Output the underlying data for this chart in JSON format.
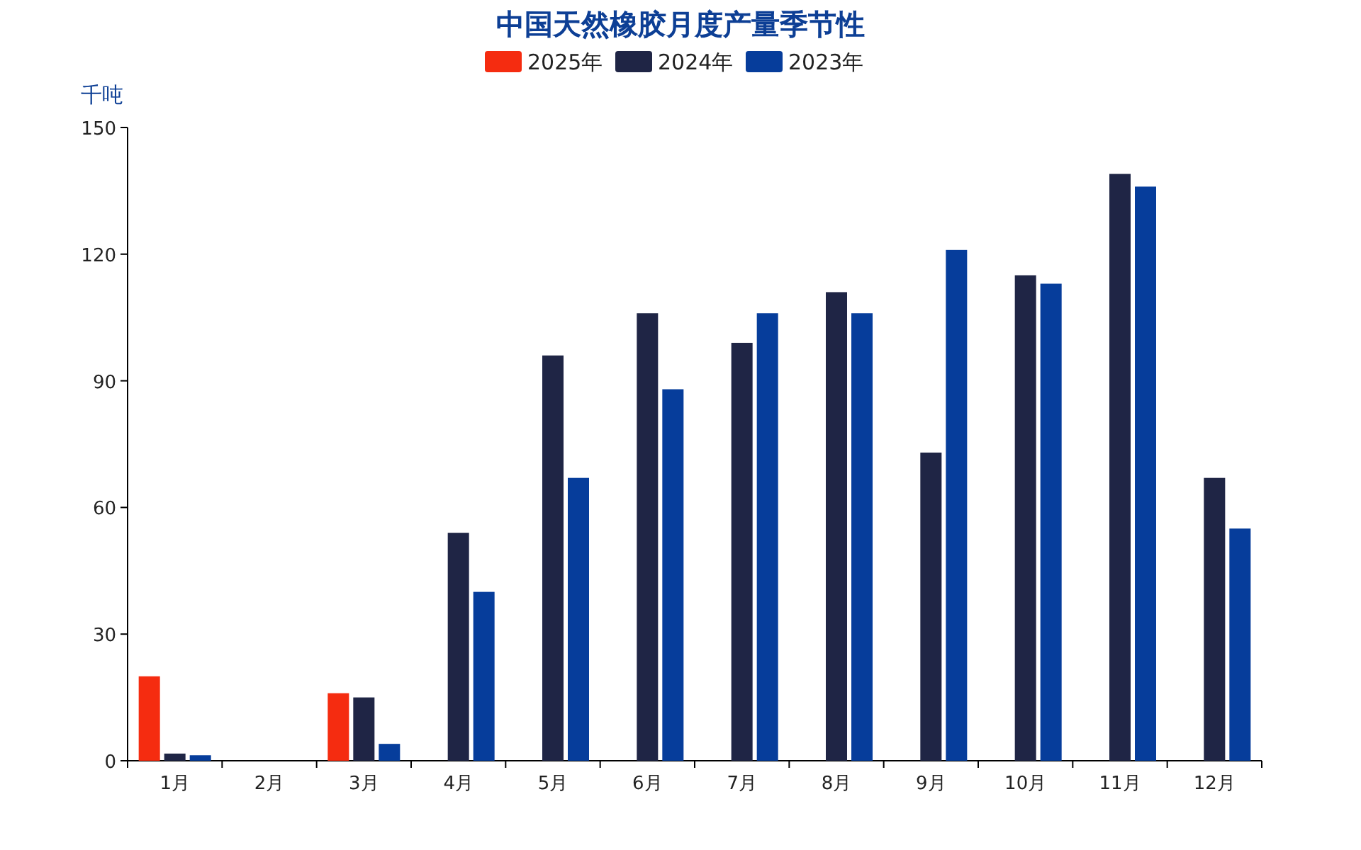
{
  "chart_data": {
    "type": "bar",
    "title": "中国天然橡胶月度产量季节性",
    "ylabel": "千吨",
    "categories": [
      "1月",
      "2月",
      "3月",
      "4月",
      "5月",
      "6月",
      "7月",
      "8月",
      "9月",
      "10月",
      "11月",
      "12月"
    ],
    "series": [
      {
        "name": "2025年",
        "color": "#f52c10",
        "values": [
          20,
          null,
          16,
          null,
          null,
          null,
          null,
          null,
          null,
          null,
          null,
          null
        ]
      },
      {
        "name": "2024年",
        "color": "#1f2545",
        "values": [
          1.7,
          null,
          15,
          54,
          96,
          106,
          99,
          111,
          73,
          115,
          139,
          67
        ]
      },
      {
        "name": "2023年",
        "color": "#063d9b",
        "values": [
          1.3,
          null,
          4,
          40,
          67,
          88,
          106,
          106,
          121,
          113,
          136,
          55
        ]
      }
    ],
    "ylim": [
      0,
      150
    ],
    "yticks": [
      0,
      30,
      60,
      90,
      120,
      150
    ],
    "grid": false,
    "legend": "top"
  }
}
